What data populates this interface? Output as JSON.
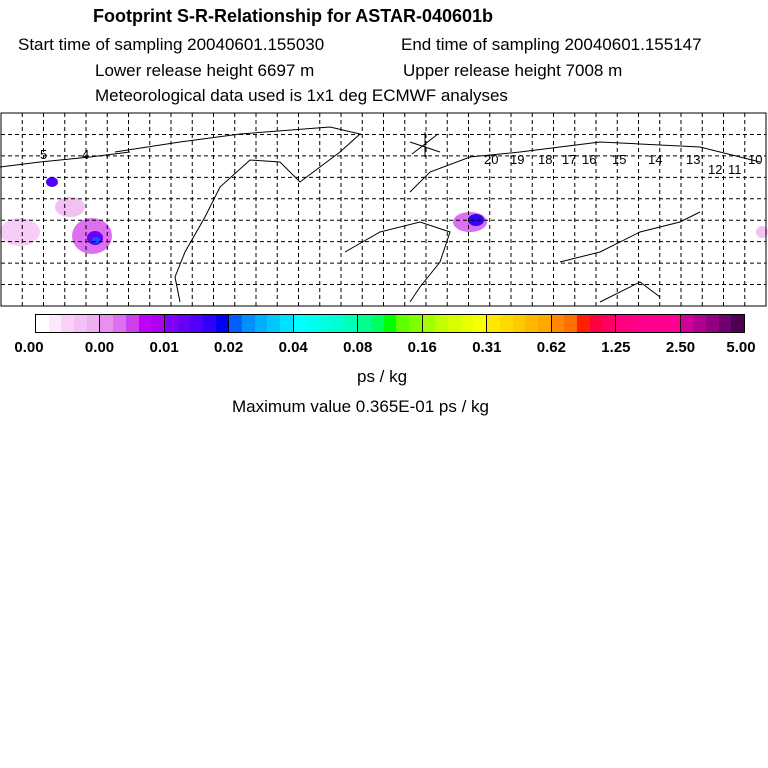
{
  "title": "Footprint S-R-Relationship for ASTAR-040601b",
  "start": "Start time of sampling 20040601.155030",
  "end": "End time of sampling 20040601.155147",
  "lower": "Lower release height 6697 m",
  "upper": "Upper release height 7008 m",
  "met": "Meteorological data used is 1x1 deg ECMWF analyses",
  "map_labels": [
    "5",
    "4",
    "20",
    "19",
    "18",
    "17",
    "16",
    "15",
    "14",
    "13",
    "12",
    "11",
    "10"
  ],
  "colorbar": {
    "ticks": [
      "0.00",
      "0.00",
      "0.01",
      "0.02",
      "0.04",
      "0.08",
      "0.16",
      "0.31",
      "0.62",
      "1.25",
      "2.50",
      "5.00"
    ],
    "segments": [
      [
        "#ffffff",
        "#fde8fd",
        "#f9d0f9",
        "#f5c0f5",
        "#efb0f0"
      ],
      [
        "#e890f0",
        "#dc70f0",
        "#cc40f0",
        "#c000f8",
        "#b000f0"
      ],
      [
        "#8000f8",
        "#6800f8",
        "#5000f8",
        "#3000f8",
        "#0000f8"
      ],
      [
        "#0060ff",
        "#0090ff",
        "#00b0ff",
        "#00c8ff",
        "#00e0ff"
      ],
      [
        "#00ffff",
        "#00fff0",
        "#00ffe0",
        "#00ffd0",
        "#00ffb8"
      ],
      [
        "#00ff90",
        "#00ff60",
        "#00ff00",
        "#60ff00",
        "#80ff00"
      ],
      [
        "#a0ff00",
        "#c0ff00",
        "#d8ff00",
        "#e8ff00",
        "#f8ff00"
      ],
      [
        "#ffe800",
        "#ffd800",
        "#ffc800",
        "#ffb800",
        "#ffa800"
      ],
      [
        "#ff8800",
        "#ff7000",
        "#ff2000",
        "#ff0040",
        "#ff0060"
      ],
      [
        "#ff0080",
        "#ff0088",
        "#ff0090",
        "#ff0090",
        "#ff0090"
      ],
      [
        "#d00098",
        "#b00090",
        "#900080",
        "#700070",
        "#500050"
      ]
    ]
  },
  "unit": "ps / kg",
  "max": "Maximum value  0.365E-01 ps / kg"
}
